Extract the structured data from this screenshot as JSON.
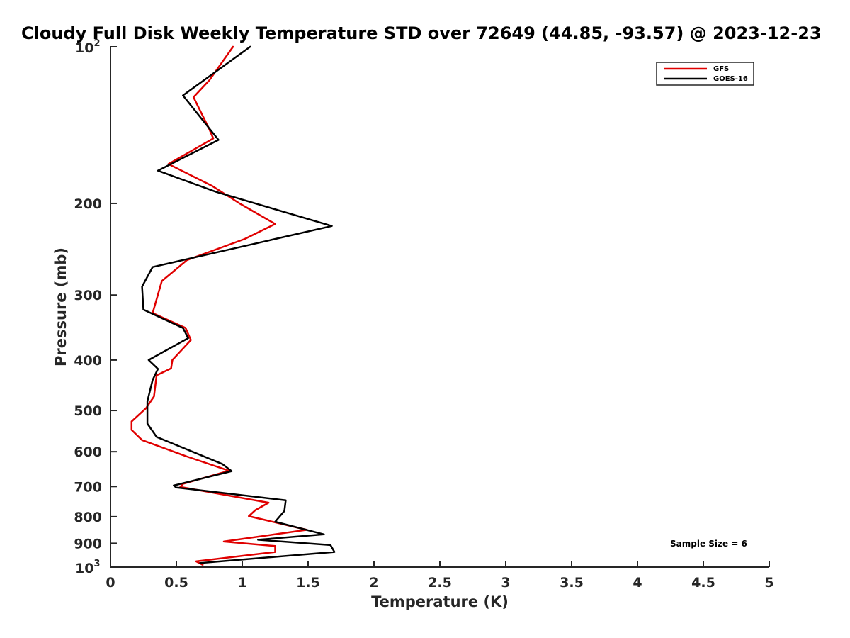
{
  "chart_data": {
    "type": "line",
    "title": "Cloudy Full Disk Weekly Temperature STD over 72649 (44.85, -93.57) @ 2023-12-23",
    "xlabel": "Temperature (K)",
    "ylabel": "Pressure (mb)",
    "xlim": [
      0,
      5
    ],
    "ylim": [
      100,
      1000
    ],
    "y_scale": "log",
    "y_reversed": true,
    "xticks": [
      0,
      0.5,
      1,
      1.5,
      2,
      2.5,
      3,
      3.5,
      4,
      4.5,
      5
    ],
    "xtick_labels": [
      "0",
      "0.5",
      "1",
      "1.5",
      "2",
      "2.5",
      "3",
      "3.5",
      "4",
      "4.5",
      "5"
    ],
    "yticks": [
      {
        "value": 100,
        "base": "10",
        "exp": "2"
      },
      {
        "value": 200,
        "label": "200"
      },
      {
        "value": 300,
        "label": "300"
      },
      {
        "value": 400,
        "label": "400"
      },
      {
        "value": 500,
        "label": "500"
      },
      {
        "value": 600,
        "label": "600"
      },
      {
        "value": 700,
        "label": "700"
      },
      {
        "value": 800,
        "label": "800"
      },
      {
        "value": 900,
        "label": "900"
      },
      {
        "value": 1000,
        "base": "10",
        "exp": "3"
      }
    ],
    "grid": false,
    "legend_position": "top-right",
    "series": [
      {
        "name": "GFS",
        "color": "#e00000",
        "points": [
          {
            "x": 0.93,
            "y": 100
          },
          {
            "x": 0.75,
            "y": 116
          },
          {
            "x": 0.63,
            "y": 125
          },
          {
            "x": 0.75,
            "y": 144
          },
          {
            "x": 0.78,
            "y": 150
          },
          {
            "x": 0.44,
            "y": 168
          },
          {
            "x": 0.77,
            "y": 185
          },
          {
            "x": 0.98,
            "y": 200
          },
          {
            "x": 1.25,
            "y": 219
          },
          {
            "x": 1.02,
            "y": 234
          },
          {
            "x": 0.58,
            "y": 257
          },
          {
            "x": 0.39,
            "y": 282
          },
          {
            "x": 0.32,
            "y": 325
          },
          {
            "x": 0.57,
            "y": 347
          },
          {
            "x": 0.61,
            "y": 366
          },
          {
            "x": 0.47,
            "y": 400
          },
          {
            "x": 0.46,
            "y": 415
          },
          {
            "x": 0.35,
            "y": 428
          },
          {
            "x": 0.33,
            "y": 470
          },
          {
            "x": 0.27,
            "y": 495
          },
          {
            "x": 0.16,
            "y": 525
          },
          {
            "x": 0.16,
            "y": 545
          },
          {
            "x": 0.24,
            "y": 570
          },
          {
            "x": 0.58,
            "y": 613
          },
          {
            "x": 0.9,
            "y": 653
          },
          {
            "x": 0.55,
            "y": 692
          },
          {
            "x": 0.53,
            "y": 701
          },
          {
            "x": 1.2,
            "y": 752
          },
          {
            "x": 1.1,
            "y": 777
          },
          {
            "x": 1.05,
            "y": 798
          },
          {
            "x": 1.49,
            "y": 848
          },
          {
            "x": 0.86,
            "y": 893
          },
          {
            "x": 1.25,
            "y": 911
          },
          {
            "x": 1.25,
            "y": 935
          },
          {
            "x": 0.65,
            "y": 975
          },
          {
            "x": 0.7,
            "y": 990
          }
        ]
      },
      {
        "name": "GOES-16",
        "color": "#000000",
        "points": [
          {
            "x": 1.06,
            "y": 100
          },
          {
            "x": 0.55,
            "y": 124
          },
          {
            "x": 0.82,
            "y": 151
          },
          {
            "x": 0.36,
            "y": 173
          },
          {
            "x": 0.8,
            "y": 190
          },
          {
            "x": 1.68,
            "y": 221
          },
          {
            "x": 0.32,
            "y": 265
          },
          {
            "x": 0.24,
            "y": 289
          },
          {
            "x": 0.25,
            "y": 320
          },
          {
            "x": 0.55,
            "y": 347
          },
          {
            "x": 0.59,
            "y": 363
          },
          {
            "x": 0.29,
            "y": 400
          },
          {
            "x": 0.36,
            "y": 416
          },
          {
            "x": 0.32,
            "y": 437
          },
          {
            "x": 0.28,
            "y": 480
          },
          {
            "x": 0.28,
            "y": 530
          },
          {
            "x": 0.35,
            "y": 562
          },
          {
            "x": 0.85,
            "y": 634
          },
          {
            "x": 0.92,
            "y": 654
          },
          {
            "x": 0.48,
            "y": 697
          },
          {
            "x": 0.5,
            "y": 703
          },
          {
            "x": 1.33,
            "y": 744
          },
          {
            "x": 1.32,
            "y": 780
          },
          {
            "x": 1.25,
            "y": 818
          },
          {
            "x": 1.62,
            "y": 865
          },
          {
            "x": 1.12,
            "y": 886
          },
          {
            "x": 1.67,
            "y": 907
          },
          {
            "x": 1.7,
            "y": 935
          },
          {
            "x": 0.68,
            "y": 982
          }
        ]
      }
    ],
    "legend": [
      {
        "label": "GFS",
        "color": "#e00000"
      },
      {
        "label": "GOES-16",
        "color": "#000000"
      }
    ],
    "annotation": "Sample Size = 6"
  }
}
